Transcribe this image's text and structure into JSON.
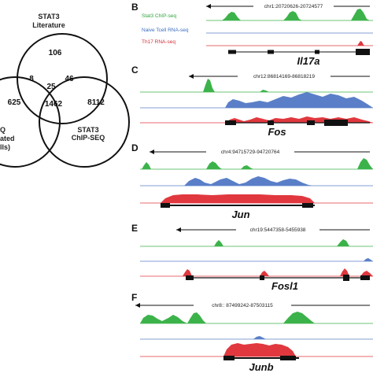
{
  "venn": {
    "top_label_1": "STAT3",
    "top_label_2": "Literature",
    "right_label_1": "STAT3",
    "right_label_2": "ChIP-SEQ",
    "left_label_1": "Q",
    "left_label_2": "ated",
    "left_label_3": "lls)",
    "n_top_only": "106",
    "n_left_top": "8",
    "n_center": "25",
    "n_top_right": "46",
    "n_left_only": "625",
    "n_left_right": "1462",
    "n_right_only": "8112"
  },
  "panels": [
    {
      "letter": "B",
      "coord": "chr1:20720626-20724577",
      "gene": "Il17a",
      "legend": [
        "Stat3 ChIP-seq",
        "Naive Tcell RNA-seq",
        "Th17 RNA-seq"
      ]
    },
    {
      "letter": "C",
      "coord": "chr12:86814169-86818219",
      "gene": "Fos"
    },
    {
      "letter": "D",
      "coord": "chr4:94715729-94720764",
      "gene": "Jun"
    },
    {
      "letter": "E",
      "coord": "chr19:5447358-5455938",
      "gene": "Fosl1"
    },
    {
      "letter": "F",
      "coord": "chr8:: 87499242-87503115",
      "gene": "Junb"
    }
  ],
  "colors": {
    "chip": "#3cb34a",
    "naive": "#5a7fc8",
    "th17": "#e0383e",
    "chip_text": "#2fa43a",
    "naive_text": "#3a6cc0",
    "th17_text": "#d0303a"
  }
}
